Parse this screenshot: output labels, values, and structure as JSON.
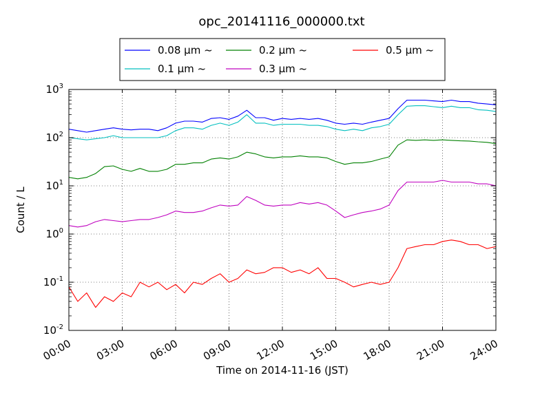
{
  "chart_data": {
    "type": "line",
    "title": "opc_20141116_000000.txt",
    "xlabel": "Time on 2014-11-16 (JST)",
    "ylabel": "Count / L",
    "xlim": [
      0,
      24
    ],
    "x_ticks": [
      0,
      3,
      6,
      9,
      12,
      15,
      18,
      21,
      24
    ],
    "x_tick_labels": [
      "00:00",
      "03:00",
      "06:00",
      "09:00",
      "12:00",
      "15:00",
      "18:00",
      "21:00",
      "24:00"
    ],
    "y_scale": "log",
    "ylim": [
      0.01,
      1000
    ],
    "y_tick_labels": [
      {
        "base": "10",
        "exp": "-2"
      },
      {
        "base": "10",
        "exp": "-1"
      },
      {
        "base": "10",
        "exp": "0"
      },
      {
        "base": "10",
        "exp": "1"
      },
      {
        "base": "10",
        "exp": "2"
      },
      {
        "base": "10",
        "exp": "3"
      }
    ],
    "grid": true,
    "legend_position": "top-center",
    "series": [
      {
        "name": "0.08 μm ~",
        "color": "#0000ff",
        "x": [
          0,
          0.5,
          1,
          1.5,
          2,
          2.5,
          3,
          3.5,
          4,
          4.5,
          5,
          5.5,
          6,
          6.5,
          7,
          7.5,
          8,
          8.5,
          9,
          9.5,
          10,
          10.5,
          11,
          11.5,
          12,
          12.5,
          13,
          13.5,
          14,
          14.5,
          15,
          15.5,
          16,
          16.5,
          17,
          17.5,
          18,
          18.5,
          19,
          19.5,
          20,
          20.5,
          21,
          21.5,
          22,
          22.5,
          23,
          23.5,
          24
        ],
        "y": [
          150,
          140,
          130,
          140,
          150,
          160,
          150,
          145,
          150,
          150,
          140,
          160,
          200,
          220,
          220,
          210,
          250,
          260,
          240,
          280,
          370,
          260,
          260,
          230,
          250,
          240,
          250,
          240,
          250,
          230,
          200,
          190,
          200,
          190,
          210,
          230,
          250,
          400,
          600,
          600,
          600,
          580,
          560,
          600,
          560,
          560,
          520,
          500,
          480
        ]
      },
      {
        "name": "0.1 μm ~",
        "color": "#00bfbf",
        "x": [
          0,
          0.5,
          1,
          1.5,
          2,
          2.5,
          3,
          3.5,
          4,
          4.5,
          5,
          5.5,
          6,
          6.5,
          7,
          7.5,
          8,
          8.5,
          9,
          9.5,
          10,
          10.5,
          11,
          11.5,
          12,
          12.5,
          13,
          13.5,
          14,
          14.5,
          15,
          15.5,
          16,
          16.5,
          17,
          17.5,
          18,
          18.5,
          19,
          19.5,
          20,
          20.5,
          21,
          21.5,
          22,
          22.5,
          23,
          23.5,
          24
        ],
        "y": [
          100,
          95,
          90,
          95,
          100,
          110,
          100,
          100,
          100,
          100,
          100,
          110,
          140,
          160,
          160,
          150,
          180,
          200,
          180,
          210,
          300,
          200,
          200,
          180,
          190,
          190,
          190,
          180,
          180,
          170,
          150,
          140,
          150,
          140,
          160,
          170,
          190,
          300,
          450,
          460,
          460,
          440,
          420,
          450,
          420,
          420,
          380,
          370,
          350
        ]
      },
      {
        "name": "0.2 μm ~",
        "color": "#008000",
        "x": [
          0,
          0.5,
          1,
          1.5,
          2,
          2.5,
          3,
          3.5,
          4,
          4.5,
          5,
          5.5,
          6,
          6.5,
          7,
          7.5,
          8,
          8.5,
          9,
          9.5,
          10,
          10.5,
          11,
          11.5,
          12,
          12.5,
          13,
          13.5,
          14,
          14.5,
          15,
          15.5,
          16,
          16.5,
          17,
          17.5,
          18,
          18.5,
          19,
          19.5,
          20,
          20.5,
          21,
          21.5,
          22,
          22.5,
          23,
          23.5,
          24
        ],
        "y": [
          15,
          14,
          15,
          18,
          25,
          26,
          22,
          20,
          23,
          20,
          20,
          22,
          28,
          28,
          30,
          30,
          36,
          38,
          36,
          40,
          50,
          46,
          40,
          38,
          40,
          40,
          42,
          40,
          40,
          38,
          32,
          28,
          30,
          30,
          32,
          36,
          40,
          70,
          90,
          88,
          90,
          88,
          90,
          88,
          86,
          85,
          82,
          80,
          75
        ]
      },
      {
        "name": "0.3 μm ~",
        "color": "#bf00bf",
        "x": [
          0,
          0.5,
          1,
          1.5,
          2,
          2.5,
          3,
          3.5,
          4,
          4.5,
          5,
          5.5,
          6,
          6.5,
          7,
          7.5,
          8,
          8.5,
          9,
          9.5,
          10,
          10.5,
          11,
          11.5,
          12,
          12.5,
          13,
          13.5,
          14,
          14.5,
          15,
          15.5,
          16,
          16.5,
          17,
          17.5,
          18,
          18.5,
          19,
          19.5,
          20,
          20.5,
          21,
          21.5,
          22,
          22.5,
          23,
          23.5,
          24
        ],
        "y": [
          1.5,
          1.4,
          1.5,
          1.8,
          2.0,
          1.9,
          1.8,
          1.9,
          2.0,
          2.0,
          2.2,
          2.5,
          3.0,
          2.8,
          2.8,
          3.0,
          3.5,
          4.0,
          3.8,
          4.0,
          6.0,
          5.0,
          4.0,
          3.8,
          4.0,
          4.0,
          4.5,
          4.2,
          4.5,
          4.0,
          3.0,
          2.2,
          2.5,
          2.8,
          3.0,
          3.3,
          4.0,
          8.0,
          12,
          12,
          12,
          12,
          13,
          12,
          12,
          12,
          11,
          11,
          10
        ]
      },
      {
        "name": "0.5 μm ~",
        "color": "#ff0000",
        "x": [
          0,
          0.5,
          1,
          1.5,
          2,
          2.5,
          3,
          3.5,
          4,
          4.5,
          5,
          5.5,
          6,
          6.5,
          7,
          7.5,
          8,
          8.5,
          9,
          9.5,
          10,
          10.5,
          11,
          11.5,
          12,
          12.5,
          13,
          13.5,
          14,
          14.5,
          15,
          15.5,
          16,
          16.5,
          17,
          17.5,
          18,
          18.5,
          19,
          19.5,
          20,
          20.5,
          21,
          21.5,
          22,
          22.5,
          23,
          23.5,
          24
        ],
        "y": [
          0.08,
          0.04,
          0.06,
          0.03,
          0.05,
          0.04,
          0.06,
          0.05,
          0.1,
          0.08,
          0.1,
          0.07,
          0.09,
          0.06,
          0.1,
          0.09,
          0.12,
          0.15,
          0.1,
          0.12,
          0.18,
          0.15,
          0.16,
          0.2,
          0.2,
          0.16,
          0.18,
          0.15,
          0.2,
          0.12,
          0.12,
          0.1,
          0.08,
          0.09,
          0.1,
          0.09,
          0.1,
          0.2,
          0.5,
          0.55,
          0.6,
          0.6,
          0.7,
          0.75,
          0.7,
          0.6,
          0.6,
          0.5,
          0.55
        ]
      }
    ]
  }
}
